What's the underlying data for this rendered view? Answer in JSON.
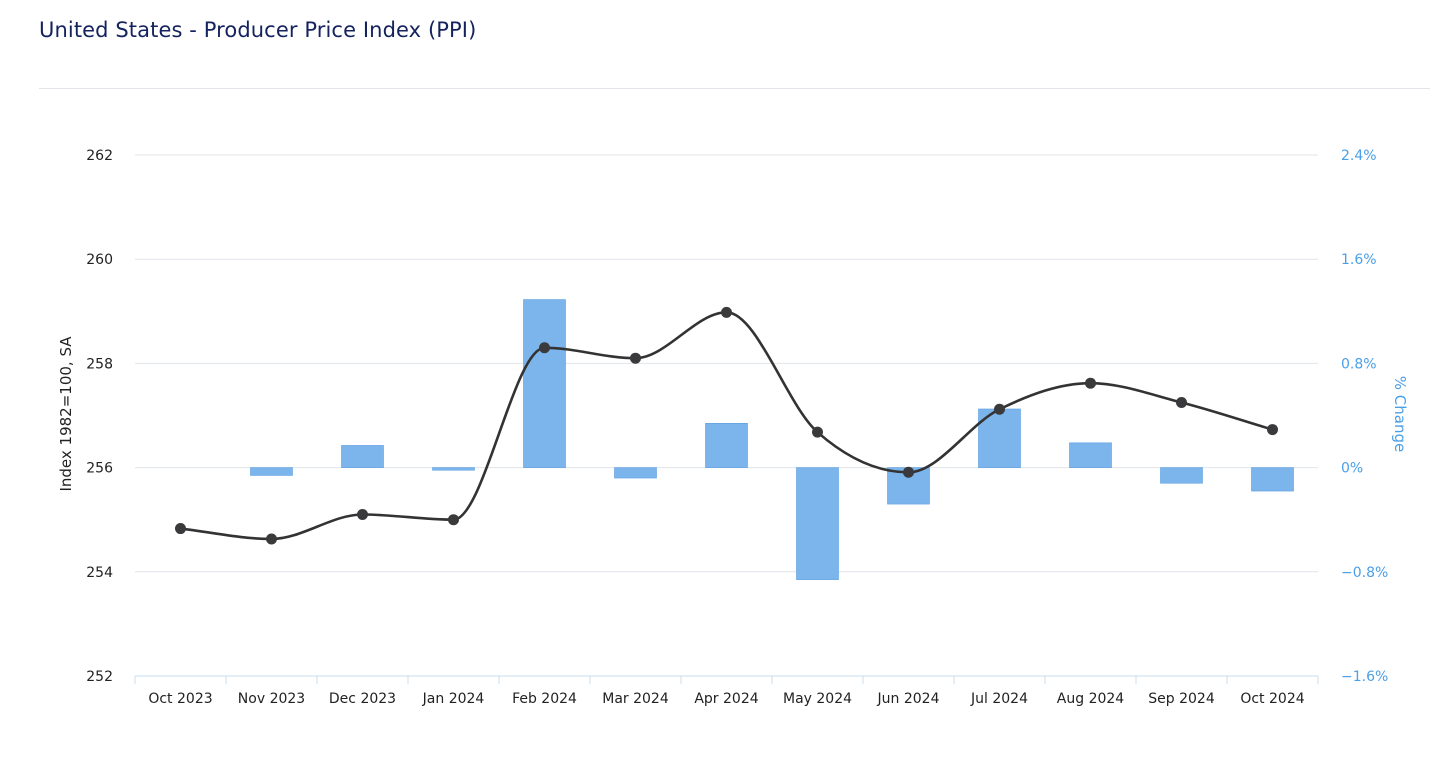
{
  "chart_data": {
    "type": "bar+line",
    "title": "United States - Producer Price Index (PPI)",
    "categories": [
      "Oct 2023",
      "Nov 2023",
      "Dec 2023",
      "Jan 2024",
      "Feb 2024",
      "Mar 2024",
      "Apr 2024",
      "May 2024",
      "Jun 2024",
      "Jul 2024",
      "Aug 2024",
      "Sep 2024",
      "Oct 2024"
    ],
    "series": [
      {
        "type": "line",
        "axis": "left",
        "values": [
          254.83,
          254.63,
          255.1,
          255.0,
          258.3,
          258.1,
          258.98,
          256.68,
          255.91,
          257.12,
          257.62,
          257.25,
          256.73
        ]
      },
      {
        "type": "bar",
        "axis": "right",
        "values": [
          0.0,
          -0.06,
          0.17,
          -0.02,
          1.29,
          -0.08,
          0.34,
          -0.86,
          -0.28,
          0.45,
          0.19,
          -0.12,
          -0.18
        ]
      }
    ],
    "ylabel_left": "Index 1982=100, SA",
    "ylabel_right": "% Change",
    "ylim_left": [
      252,
      262
    ],
    "ylim_right": [
      -1.6,
      2.4
    ],
    "yticks_left": [
      "252",
      "254",
      "256",
      "258",
      "260",
      "262"
    ],
    "yticks_right": [
      "−1.6%",
      "−0.8%",
      "0%",
      "0.8%",
      "1.6%",
      "2.4%"
    ],
    "grid": true,
    "colors": {
      "line": "#333333",
      "bar": "#7cb5ec",
      "bar_stroke": "#5a9de0",
      "right_axis": "#4a9fe8",
      "grid": "#e0e4ea",
      "title": "#14225e"
    }
  }
}
